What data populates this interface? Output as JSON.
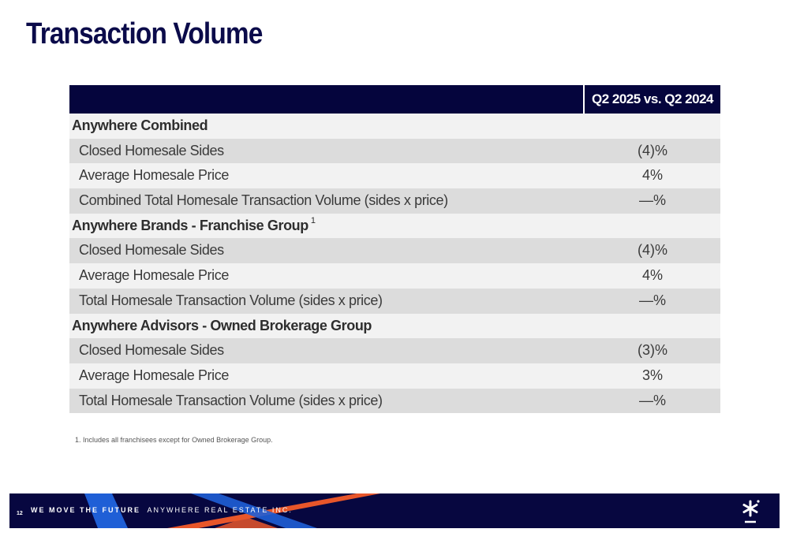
{
  "title": "Transaction Volume",
  "table": {
    "column_header": "Q2 2025 vs. Q2 2024",
    "rows": [
      {
        "type": "section",
        "label": "Anywhere Combined",
        "value": ""
      },
      {
        "type": "item",
        "label": "Closed Homesale Sides",
        "value": "(4)%"
      },
      {
        "type": "item",
        "label": "Average Homesale Price",
        "value": "4%"
      },
      {
        "type": "item",
        "label": "Combined Total Homesale Transaction Volume (sides x price)",
        "value": "—%"
      },
      {
        "type": "section",
        "label": "Anywhere Brands - Franchise Group",
        "sup": "1",
        "value": ""
      },
      {
        "type": "item",
        "label": "Closed Homesale Sides",
        "value": "(4)%"
      },
      {
        "type": "item",
        "label": "Average Homesale Price",
        "value": "4%"
      },
      {
        "type": "item",
        "label": "Total Homesale Transaction Volume (sides x price)",
        "value": "—%"
      },
      {
        "type": "section",
        "label": "Anywhere Advisors - Owned Brokerage Group",
        "value": ""
      },
      {
        "type": "item",
        "label": "Closed Homesale Sides",
        "value": "(3)%"
      },
      {
        "type": "item",
        "label": "Average Homesale Price",
        "value": "3%"
      },
      {
        "type": "item",
        "label": "Total Homesale Transaction Volume (sides x price)",
        "value": "—%"
      }
    ]
  },
  "footnote": "1.    Includes all franchisees except for Owned Brokerage Group.",
  "footer": {
    "page_number": "12",
    "tagline": "WE MOVE THE FUTURE",
    "company": "ANYWHERE REAL ESTATE INC.",
    "logo_icon": "asterisk-logo-icon"
  },
  "colors": {
    "navy": "#05053d",
    "orange": "#e8562a",
    "blue": "#1f5fd6",
    "row_light": "#f2f2f2",
    "row_dark": "#dcdcdc"
  }
}
